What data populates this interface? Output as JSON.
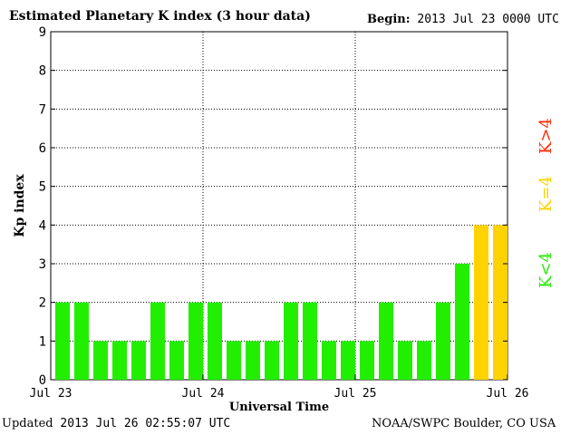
{
  "header": {
    "title": "Estimated Planetary K index (3 hour data)",
    "begin_label": "Begin:",
    "begin_value": "2013 Jul 23 0000 UTC"
  },
  "footer": {
    "updated_label": "Updated",
    "updated_value": "2013 Jul 26 02:55:07 UTC",
    "credit": "NOAA/SWPC Boulder, CO USA"
  },
  "chart_data": {
    "type": "bar",
    "title": "Estimated Planetary K index (3 hour data)",
    "xlabel": "Universal Time",
    "ylabel": "Kp index",
    "ylim": [
      0,
      9
    ],
    "yticks": [
      "0",
      "1",
      "2",
      "3",
      "4",
      "5",
      "6",
      "7",
      "8",
      "9"
    ],
    "xticks": [
      "Jul 23",
      "Jul 24",
      "Jul 25",
      "Jul 26"
    ],
    "grid": true,
    "values": [
      2,
      2,
      1,
      1,
      1,
      2,
      1,
      2,
      2,
      1,
      1,
      1,
      2,
      2,
      1,
      1,
      1,
      2,
      1,
      1,
      2,
      3,
      4,
      4
    ],
    "legend": [
      {
        "label": "K<4",
        "color": "#22ee00"
      },
      {
        "label": "K=4",
        "color": "#ffd200"
      },
      {
        "label": "K>4",
        "color": "#ff2a00"
      }
    ],
    "colors": {
      "low": "#22ee00",
      "equal": "#ffd200",
      "high": "#ff2a00"
    }
  }
}
